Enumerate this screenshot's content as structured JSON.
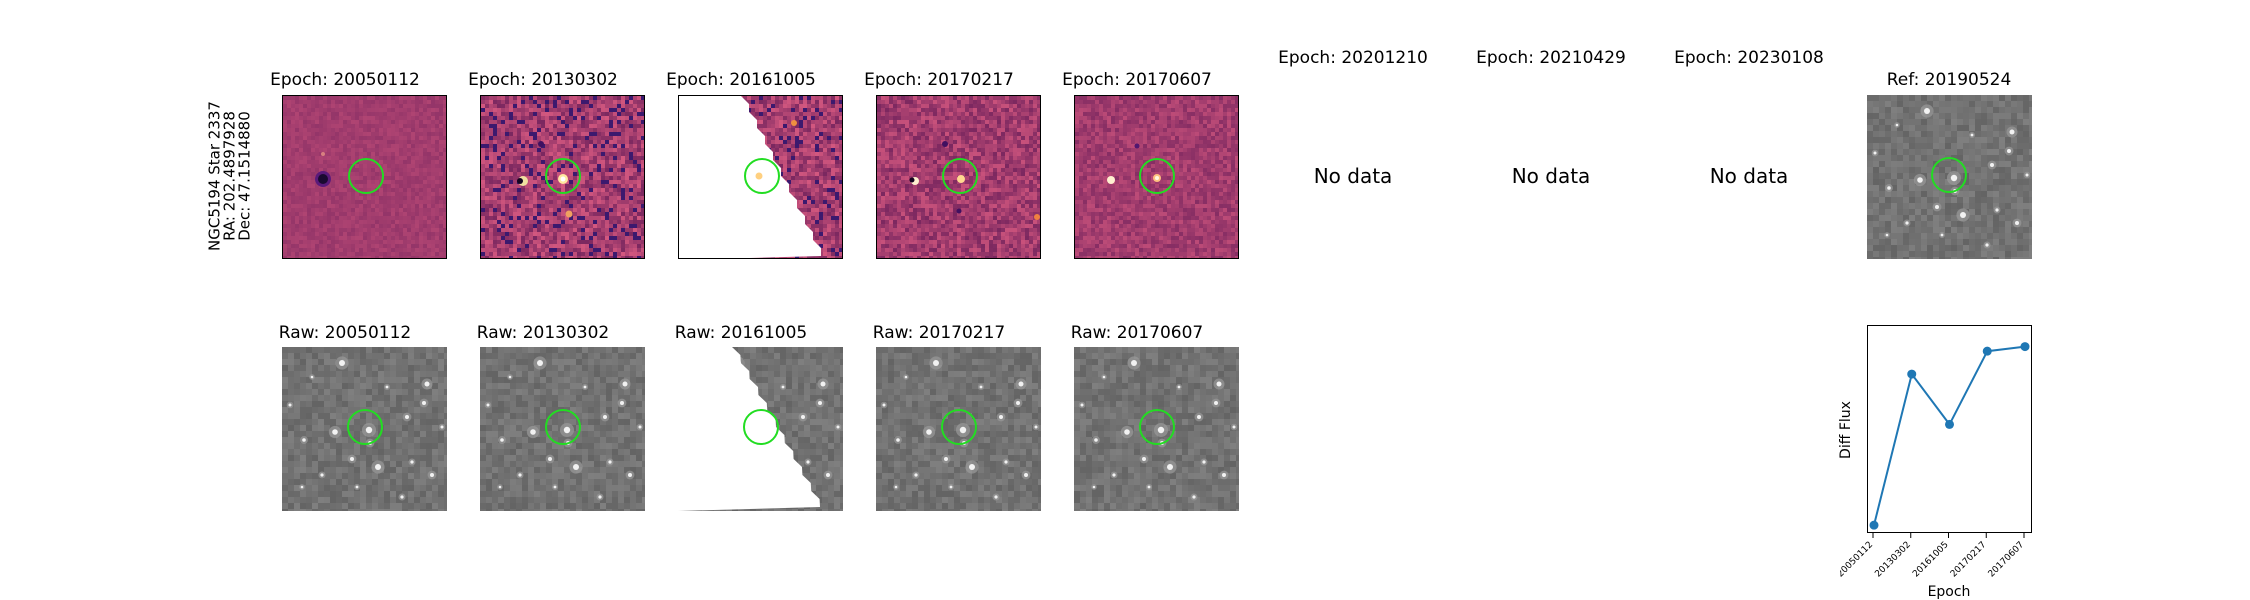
{
  "side_label": {
    "line1": "NGC5194 Star 2337",
    "line2": "RA: 202.4897928",
    "line3": "Dec: 47.1514880"
  },
  "top_row": [
    {
      "title": "Epoch: 20050112",
      "type": "diff"
    },
    {
      "title": "Epoch: 20130302",
      "type": "diff"
    },
    {
      "title": "Epoch: 20161005",
      "type": "diff-partial"
    },
    {
      "title": "Epoch: 20170217",
      "type": "diff"
    },
    {
      "title": "Epoch: 20170607",
      "type": "diff"
    },
    {
      "title": "Epoch: 20201210",
      "type": "nodata",
      "message": "No data"
    },
    {
      "title": "Epoch: 20210429",
      "type": "nodata",
      "message": "No data"
    },
    {
      "title": "Epoch: 20230108",
      "type": "nodata",
      "message": "No data"
    },
    {
      "title": "Ref: 20190524",
      "type": "ref"
    }
  ],
  "bottom_row": [
    {
      "title": "Raw: 20050112",
      "type": "raw"
    },
    {
      "title": "Raw: 20130302",
      "type": "raw"
    },
    {
      "title": "Raw: 20161005",
      "type": "raw-partial"
    },
    {
      "title": "Raw: 20170217",
      "type": "raw"
    },
    {
      "title": "Raw: 20170607",
      "type": "raw"
    }
  ],
  "colors": {
    "diff_bg": "#a23d6e",
    "raw_bg": "#727272",
    "circle": "#22dd22",
    "line": "#1f77b4"
  },
  "chart_data": {
    "type": "line",
    "title": "",
    "xlabel": "Epoch",
    "ylabel": "Diff Flux",
    "categories": [
      "20050112",
      "20130302",
      "20161005",
      "20170217",
      "20170607"
    ],
    "series": [
      {
        "values": [
          0.0,
          0.66,
          0.44,
          0.76,
          0.78
        ]
      }
    ],
    "ylim": [
      -0.03,
      0.87
    ],
    "grid": false,
    "y_ticks_shown": false
  }
}
